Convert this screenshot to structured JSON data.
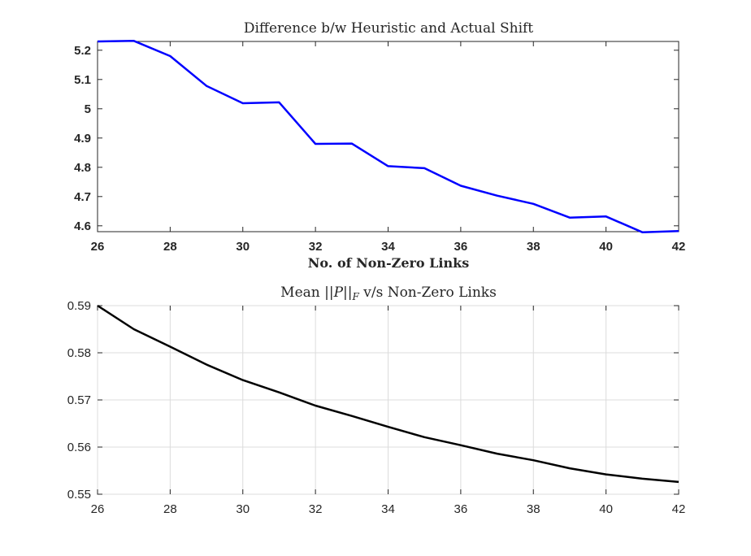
{
  "chart_data": [
    {
      "type": "line",
      "title": "Difference b/w Heuristic and Actual Shift",
      "xlabel": "No. of Non-Zero Links",
      "ylabel": "",
      "xlim": [
        26,
        42
      ],
      "ylim": [
        4.58,
        5.23
      ],
      "xticks": [
        "26",
        "28",
        "30",
        "32",
        "34",
        "36",
        "38",
        "40",
        "42"
      ],
      "yticks": [
        "4.6",
        "4.7",
        "4.8",
        "4.9",
        "5",
        "5.1",
        "5.2"
      ],
      "grid": false,
      "series": [
        {
          "color": "#0000ff",
          "x": [
            26,
            27,
            28,
            29,
            30,
            31,
            32,
            33,
            34,
            35,
            36,
            37,
            38,
            39,
            40,
            41,
            42
          ],
          "y": [
            5.23,
            5.232,
            5.18,
            5.078,
            5.019,
            5.022,
            4.88,
            4.881,
            4.804,
            4.797,
            4.737,
            4.703,
            4.675,
            4.628,
            4.632,
            4.578,
            4.582
          ]
        }
      ]
    },
    {
      "type": "line",
      "title": "Mean ||P||_F v/s Non-Zero Links",
      "xlabel": "",
      "ylabel": "",
      "xlim": [
        26,
        42
      ],
      "ylim": [
        0.55,
        0.59
      ],
      "xticks": [
        "26",
        "28",
        "30",
        "32",
        "34",
        "36",
        "38",
        "40",
        "42"
      ],
      "yticks": [
        "0.55",
        "0.56",
        "0.57",
        "0.58",
        "0.59"
      ],
      "grid": true,
      "series": [
        {
          "color": "#000000",
          "x": [
            26,
            27,
            28,
            29,
            30,
            31,
            32,
            33,
            34,
            35,
            36,
            37,
            38,
            39,
            40,
            41,
            42
          ],
          "y": [
            0.59,
            0.585,
            0.5813,
            0.5775,
            0.5742,
            0.5716,
            0.5688,
            0.5666,
            0.5643,
            0.5621,
            0.5604,
            0.5586,
            0.5572,
            0.5555,
            0.5542,
            0.5533,
            0.5526
          ]
        }
      ]
    }
  ]
}
